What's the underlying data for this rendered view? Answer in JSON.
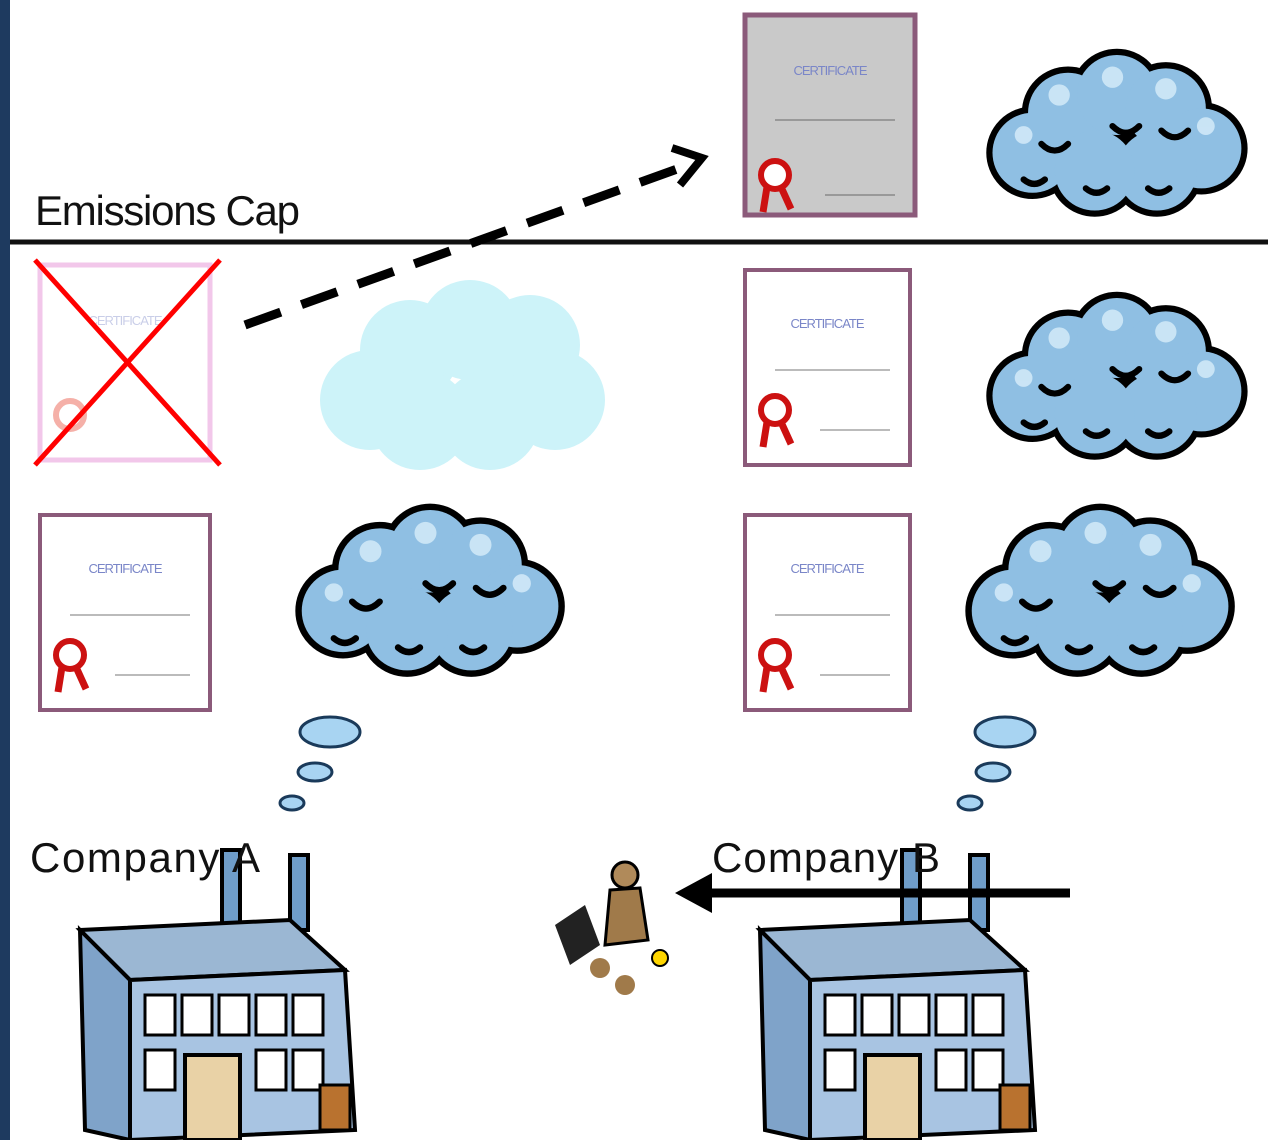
{
  "title": "Emissions Cap",
  "certificate_text": "CERTIFICATE",
  "companies": [
    {
      "label": "Company A"
    },
    {
      "label": "Company B"
    }
  ]
}
